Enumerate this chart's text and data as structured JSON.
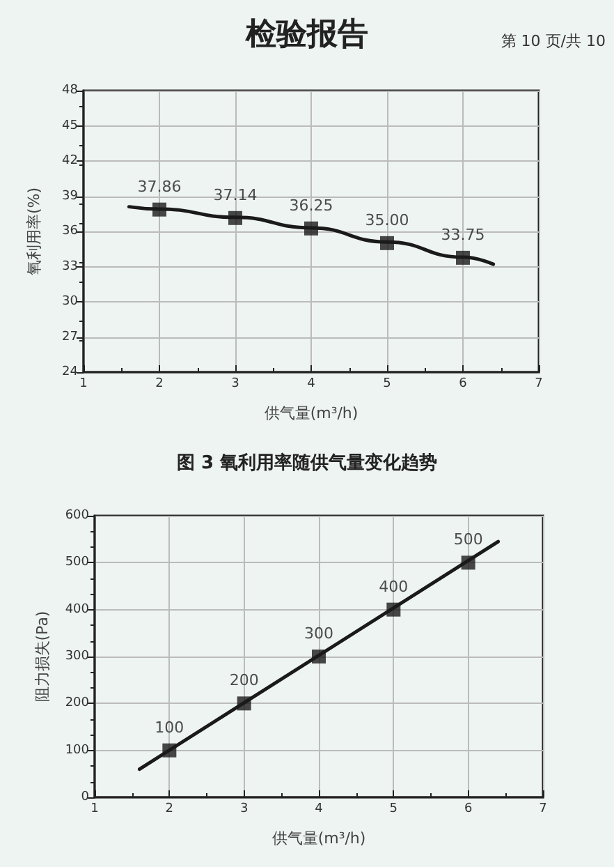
{
  "chart_data": [
    {
      "type": "line",
      "title": "检验报告",
      "annotations": [
        "第 10 页/共 10",
        "图 3 氧利用率随供气量变化趋势"
      ],
      "xlabel": "供气量(m³/h)",
      "ylabel": "氧利用率(%)",
      "xlim": [
        1,
        7
      ],
      "xticks": [
        1,
        2,
        3,
        4,
        5,
        6,
        7
      ],
      "ylim": [
        24,
        48
      ],
      "yticks": [
        24,
        27,
        30,
        33,
        36,
        39,
        42,
        45,
        48
      ],
      "grid": true,
      "series": [
        {
          "marker": "none",
          "color": "#1a1a1a",
          "x": [
            1.6,
            2,
            3,
            4,
            5,
            6,
            6.4
          ],
          "values": [
            38.1,
            37.9,
            37.2,
            36.3,
            35.1,
            33.8,
            33.2
          ]
        },
        {
          "type": "scatter",
          "marker": "square",
          "color": "#1a1a1a",
          "x": [
            2,
            3,
            4,
            5,
            6
          ],
          "values": [
            37.86,
            37.14,
            36.25,
            35.0,
            33.75
          ],
          "value_labels": [
            "37.86",
            "37.14",
            "36.25",
            "35.00",
            "33.75"
          ]
        }
      ]
    },
    {
      "type": "line",
      "xlabel": "供气量(m³/h)",
      "ylabel": "阻力损失(Pa)",
      "xlim": [
        1,
        7
      ],
      "xticks": [
        1,
        2,
        3,
        4,
        5,
        6,
        7
      ],
      "ylim": [
        0,
        600
      ],
      "yticks": [
        0,
        100,
        200,
        300,
        400,
        500,
        600
      ],
      "grid": true,
      "series": [
        {
          "marker": "none",
          "color": "#1a1a1a",
          "x": [
            1.6,
            6.4
          ],
          "values": [
            60,
            545
          ]
        },
        {
          "type": "scatter",
          "marker": "square",
          "color": "#1a1a1a",
          "x": [
            2,
            3,
            4,
            5,
            6
          ],
          "values": [
            100,
            200,
            300,
            400,
            500
          ],
          "value_labels": [
            "100",
            "200",
            "300",
            "400",
            "500"
          ]
        }
      ]
    }
  ]
}
